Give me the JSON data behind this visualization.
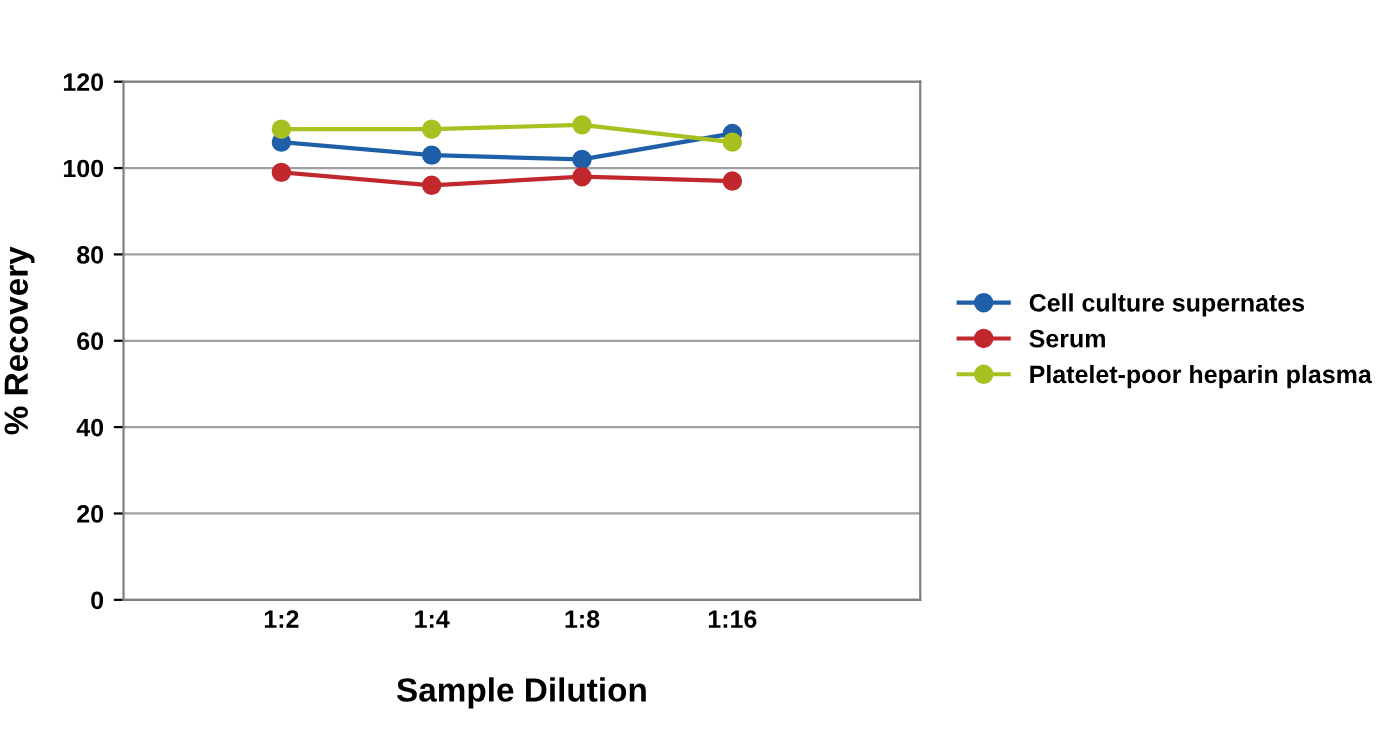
{
  "chart_data": {
    "type": "line",
    "xlabel": "Sample Dilution",
    "ylabel": "% Recovery",
    "categories": [
      "1:2",
      "1:4",
      "1:8",
      "1:16"
    ],
    "series": [
      {
        "name": "Cell culture supernates",
        "color": "#1f5fa8",
        "values": [
          106,
          103,
          102,
          108
        ]
      },
      {
        "name": "Serum",
        "color": "#c0282d",
        "values": [
          99,
          96,
          98,
          97
        ]
      },
      {
        "name": "Platelet-poor heparin plasma",
        "color": "#a8c020",
        "values": [
          109,
          109,
          110,
          106
        ]
      }
    ],
    "ylim": [
      0,
      120
    ],
    "yticks": [
      0,
      20,
      40,
      60,
      80,
      100,
      120
    ],
    "grid": "y",
    "legend": "right",
    "marker": "circle",
    "line_style": "solid"
  }
}
